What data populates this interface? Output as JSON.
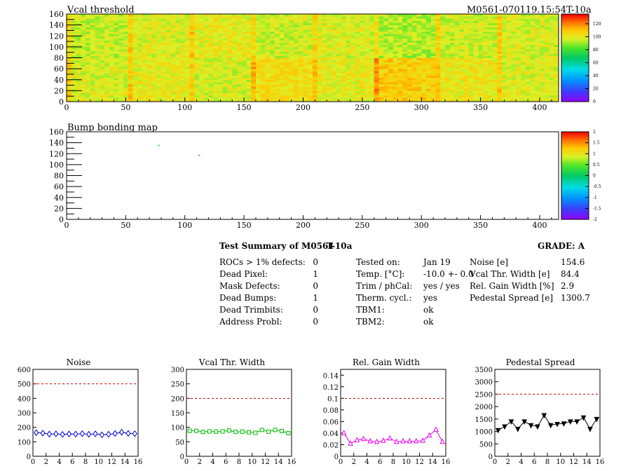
{
  "header": {
    "map_title": "Vcal threshold",
    "module_id": "M0561-070119.15:54T-10a",
    "bump_title": "Bump bonding map"
  },
  "map_axes": {
    "x_ticks": [
      "0",
      "50",
      "100",
      "150",
      "200",
      "250",
      "300",
      "350",
      "400"
    ],
    "y_ticks": [
      "0",
      "20",
      "40",
      "60",
      "80",
      "100",
      "120",
      "140",
      "160"
    ],
    "xlim": [
      0,
      416
    ],
    "ylim": [
      0,
      160
    ]
  },
  "threshold_scale": {
    "ticks": [
      "0",
      "20",
      "40",
      "60",
      "80",
      "100",
      "120"
    ],
    "range": [
      0,
      135
    ]
  },
  "bump_scale": {
    "ticks": [
      "-2",
      "-1.5",
      "-1",
      "-0.5",
      "0",
      "0.5",
      "1",
      "1.5",
      "2"
    ],
    "range": [
      -2,
      2
    ]
  },
  "summary": {
    "title": "Test Summary of M0561",
    "temp_label": "T-10a",
    "grade": "GRADE:  A",
    "col1": [
      {
        "label": "ROCs > 1% defects:",
        "value": "0"
      },
      {
        "label": "Dead Pixel:",
        "value": "1"
      },
      {
        "label": "Mask Defects:",
        "value": "0"
      },
      {
        "label": "Dead Bumps:",
        "value": "1"
      },
      {
        "label": "Dead Trimbits:",
        "value": "0"
      },
      {
        "label": "Address Probl:",
        "value": "0"
      }
    ],
    "col2": [
      {
        "label": "Tested on:",
        "value": "Jan 19"
      },
      {
        "label": "Temp. [°C]:",
        "value": "-10.0 +- 0.0"
      },
      {
        "label": "Trim / phCal:",
        "value": "yes / yes"
      },
      {
        "label": "Therm. cycl.:",
        "value": "yes"
      },
      {
        "label": "TBM1:",
        "value": "ok"
      },
      {
        "label": "TBM2:",
        "value": "ok"
      }
    ],
    "col3": [
      {
        "label": "Noise [e]",
        "value": "154.6"
      },
      {
        "label": "Vcal Thr. Width [e]",
        "value": "84.4"
      },
      {
        "label": "Rel. Gain Width [%]",
        "value": "2.9"
      },
      {
        "label": "Pedestal Spread [e]",
        "value": "1300.7"
      }
    ]
  },
  "chart_data": [
    {
      "type": "heatmap",
      "title": "Vcal threshold",
      "xlim": [
        0,
        416
      ],
      "ylim": [
        0,
        160
      ],
      "z_range": [
        0,
        135
      ],
      "description_grid": "8 x 2 chips of 52x80 pixels",
      "chip_mean_values": [
        [
          95,
          98,
          100,
          96,
          98,
          93,
          96,
          97
        ],
        [
          98,
          100,
          97,
          104,
          100,
          108,
          101,
          98
        ]
      ]
    },
    {
      "type": "heatmap",
      "title": "Bump bonding map",
      "xlim": [
        0,
        416
      ],
      "ylim": [
        0,
        160
      ],
      "z_range": [
        -2,
        2
      ],
      "points": [
        {
          "x": 78,
          "y": 135
        },
        {
          "x": 112,
          "y": 117
        }
      ]
    },
    {
      "type": "line",
      "title": "Noise",
      "x": [
        0,
        1,
        2,
        3,
        4,
        5,
        6,
        7,
        8,
        9,
        10,
        11,
        12,
        13,
        14,
        15
      ],
      "values": [
        163,
        160,
        153,
        155,
        151,
        154,
        153,
        156,
        152,
        155,
        148,
        152,
        157,
        166,
        158,
        156
      ],
      "xlim": [
        0,
        16
      ],
      "ylim": [
        0,
        600
      ],
      "yticks": [
        0,
        100,
        200,
        300,
        400,
        500,
        600
      ],
      "xticks": [
        0,
        2,
        4,
        6,
        8,
        10,
        12,
        14,
        16
      ],
      "limit": 500,
      "color": "#0000cc",
      "marker": "diamond"
    },
    {
      "type": "line",
      "title": "Vcal Thr. Width",
      "x": [
        0,
        1,
        2,
        3,
        4,
        5,
        6,
        7,
        8,
        9,
        10,
        11,
        12,
        13,
        14,
        15
      ],
      "values": [
        88,
        88,
        84,
        86,
        85,
        86,
        89,
        84,
        85,
        83,
        81,
        91,
        85,
        91,
        87,
        80
      ],
      "xlim": [
        0,
        16
      ],
      "ylim": [
        0,
        300
      ],
      "yticks": [
        0,
        50,
        100,
        150,
        200,
        250,
        300
      ],
      "xticks": [
        0,
        2,
        4,
        6,
        8,
        10,
        12,
        14,
        16
      ],
      "limit": 200,
      "color": "#00bb00",
      "marker": "square"
    },
    {
      "type": "line",
      "title": "Rel. Gain Width",
      "x": [
        0,
        1,
        2,
        3,
        4,
        5,
        6,
        7,
        8,
        9,
        10,
        11,
        12,
        13,
        14,
        15
      ],
      "values": [
        0.04,
        0.022,
        0.028,
        0.03,
        0.026,
        0.025,
        0.027,
        0.031,
        0.025,
        0.026,
        0.026,
        0.026,
        0.027,
        0.036,
        0.046,
        0.025
      ],
      "xlim": [
        0,
        16
      ],
      "ylim": [
        0,
        0.15
      ],
      "yticks": [
        0,
        0.02,
        0.04,
        0.06,
        0.08,
        0.1,
        0.12,
        0.14
      ],
      "ytick_labels": [
        "0",
        "0.02",
        "0.04",
        "0.06",
        "0.08",
        "0.1",
        "0.12",
        "0.14"
      ],
      "xticks": [
        0,
        2,
        4,
        6,
        8,
        10,
        12,
        14,
        16
      ],
      "limit": 0.1,
      "color": "#ee00ee",
      "marker": "triangle"
    },
    {
      "type": "line",
      "title": "Pedestal Spread",
      "x": [
        0,
        1,
        2,
        3,
        4,
        5,
        6,
        7,
        8,
        9,
        10,
        11,
        12,
        13,
        14,
        15
      ],
      "values": [
        1050,
        1200,
        1400,
        1100,
        1400,
        1250,
        1200,
        1650,
        1250,
        1300,
        1320,
        1400,
        1400,
        1560,
        1100,
        1500
      ],
      "xlim": [
        0,
        16
      ],
      "ylim": [
        0,
        3500
      ],
      "yticks": [
        0,
        500,
        1000,
        1500,
        2000,
        2500,
        3000,
        3500
      ],
      "xticks": [
        0,
        2,
        4,
        6,
        8,
        10,
        12,
        14,
        16
      ],
      "limit": 2500,
      "color": "#000000",
      "marker": "triangle-down"
    }
  ]
}
